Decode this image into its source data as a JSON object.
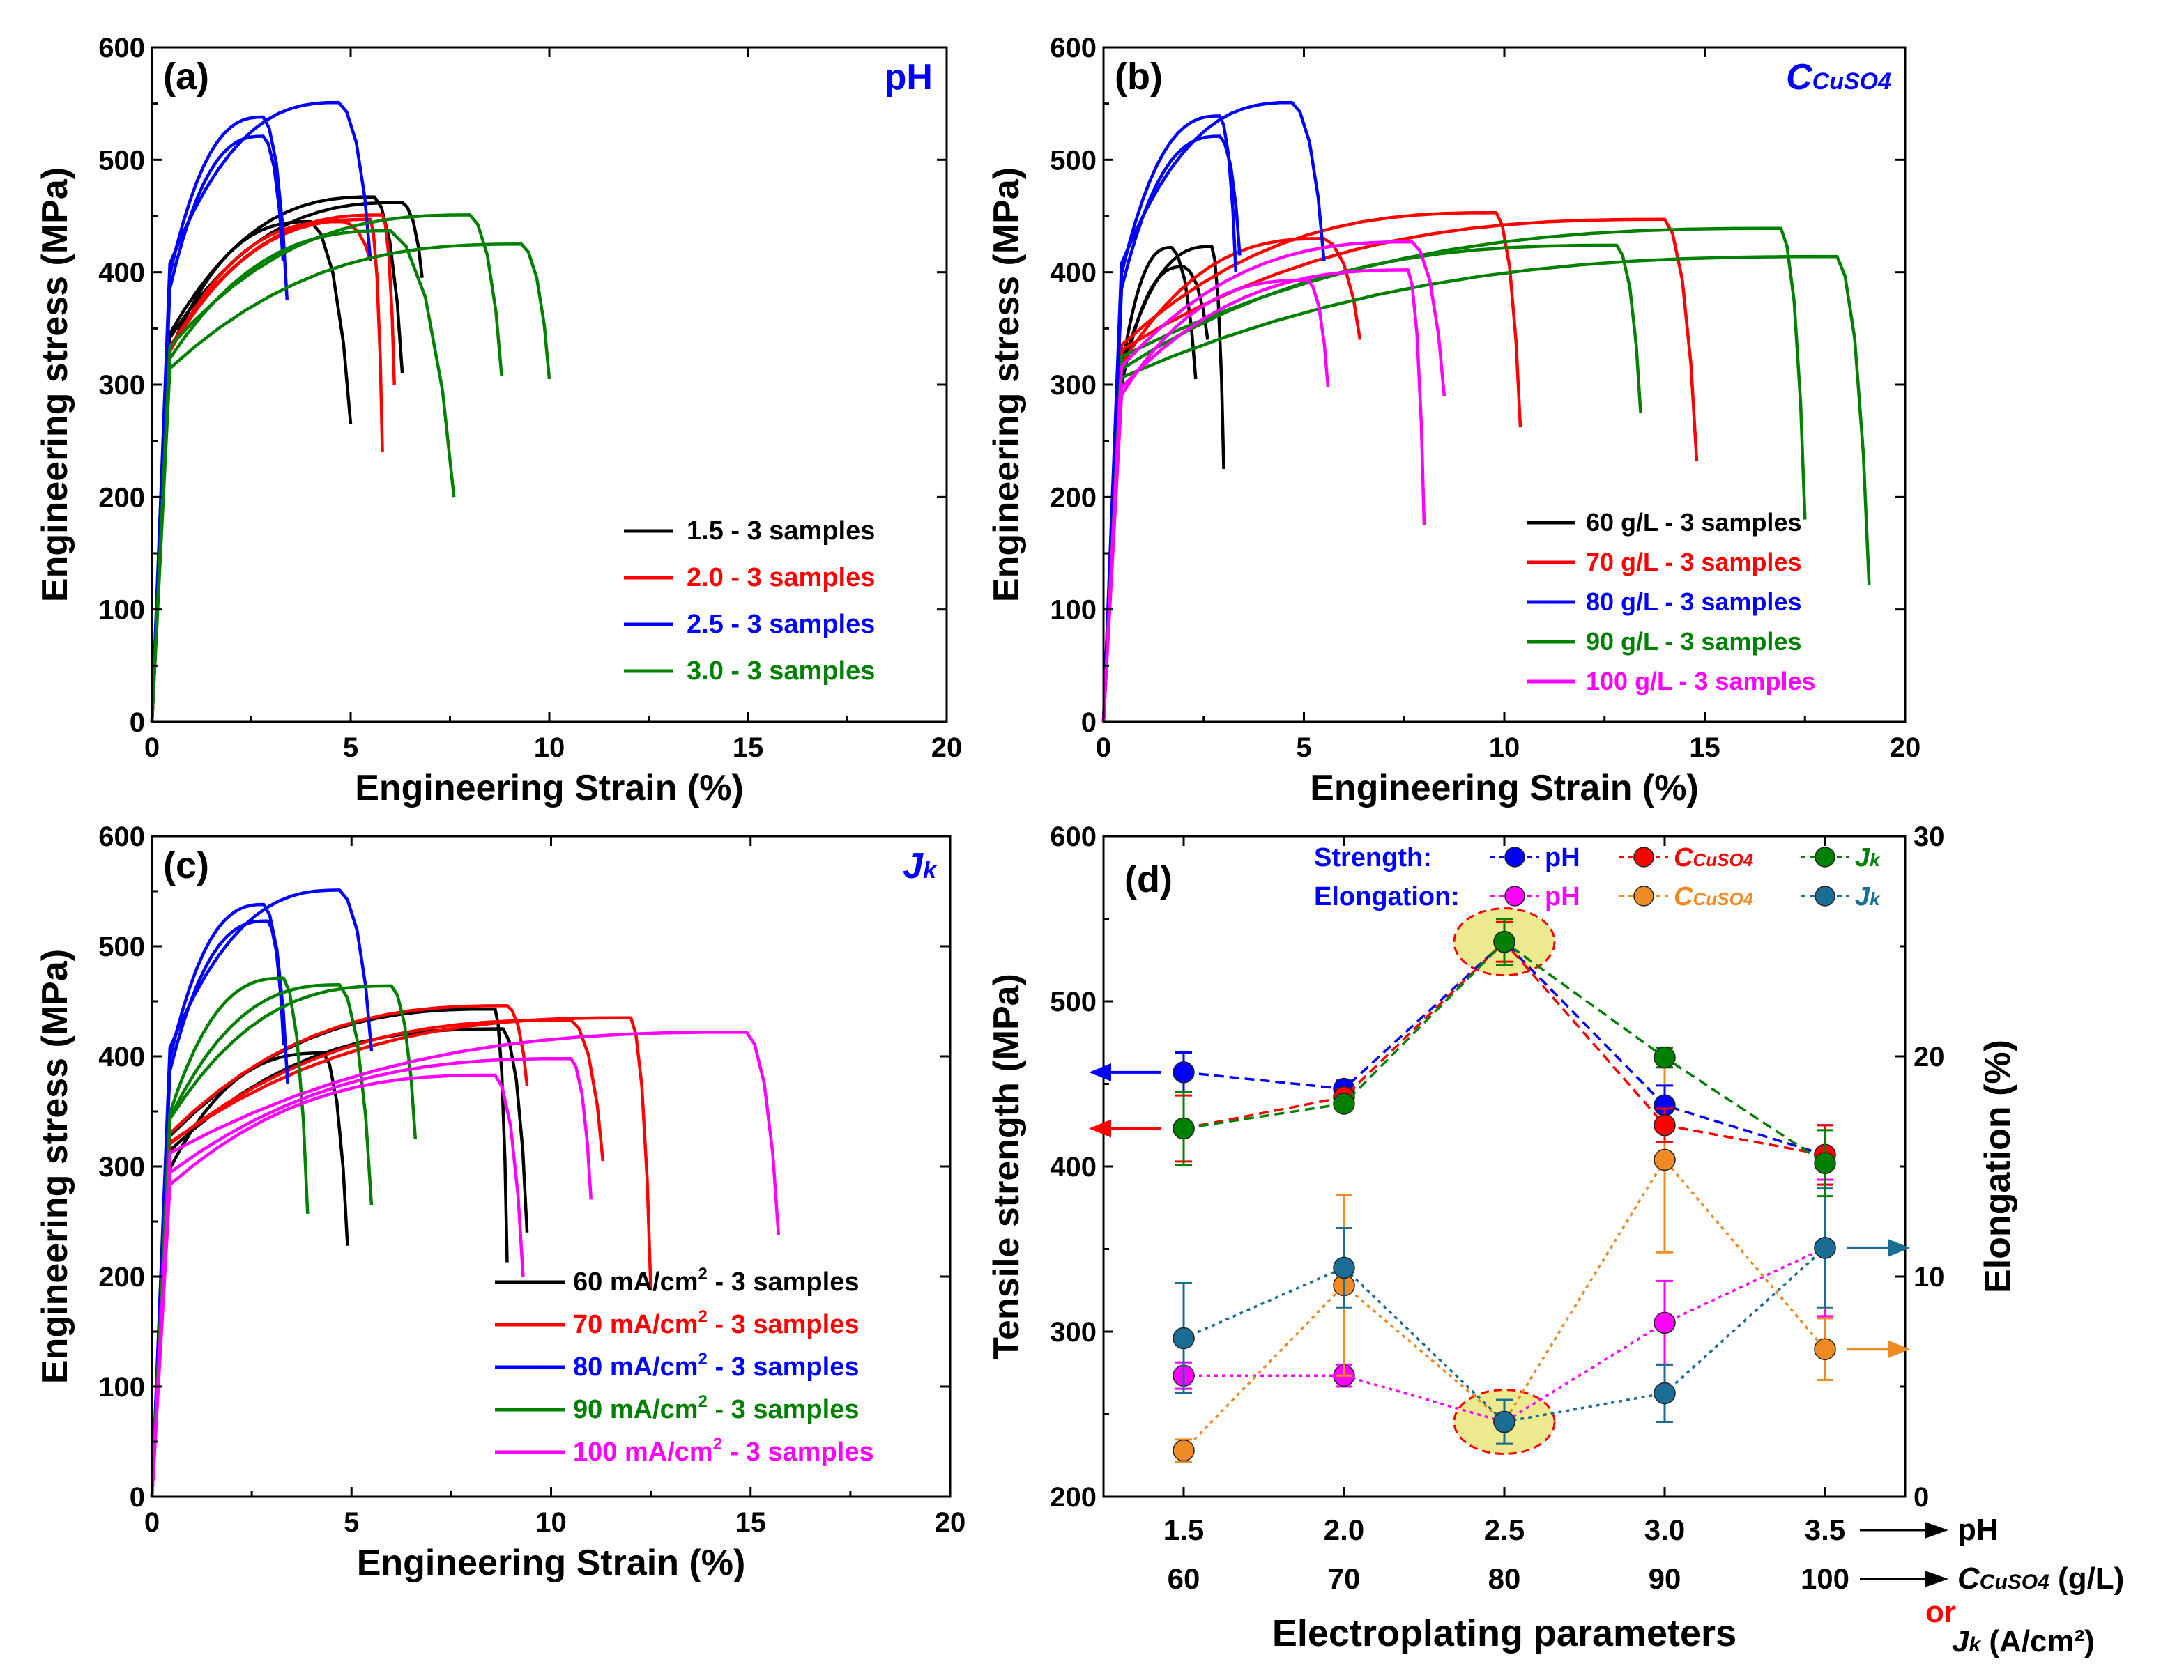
{
  "chart_data": [
    {
      "id": "a",
      "type": "line",
      "panel_label": "(a)",
      "corner_label": "pH",
      "xlabel": "Engineering Strain (%)",
      "ylabel": "Engineering stress (MPa)",
      "xlim": [
        0,
        20
      ],
      "ylim": [
        0,
        600
      ],
      "xticks": [
        0,
        5,
        10,
        15,
        20
      ],
      "yticks": [
        0,
        100,
        200,
        300,
        400,
        500,
        600
      ],
      "legend_position": "lower-right",
      "series": [
        {
          "name": "1.5 - 3 samples",
          "color": "#000000",
          "samples": [
            {
              "uts": 445,
              "e_uts": 4.0,
              "e_end": 5.0,
              "s_end": 265
            },
            {
              "uts": 467,
              "e_uts": 5.6,
              "e_end": 6.3,
              "s_end": 310
            },
            {
              "uts": 462,
              "e_uts": 6.3,
              "e_end": 6.8,
              "s_end": 395
            }
          ]
        },
        {
          "name": "2.0 - 3 samples",
          "color": "#ff0000",
          "samples": [
            {
              "uts": 447,
              "e_uts": 5.5,
              "e_end": 5.8,
              "s_end": 240
            },
            {
              "uts": 451,
              "e_uts": 5.8,
              "e_end": 6.1,
              "s_end": 300
            },
            {
              "uts": 445,
              "e_uts": 4.8,
              "e_end": 5.5,
              "s_end": 410
            }
          ]
        },
        {
          "name": "2.5 - 3 samples",
          "color": "#0000ff",
          "samples": [
            {
              "uts": 538,
              "e_uts": 2.8,
              "e_end": 3.4,
              "s_end": 375
            },
            {
              "uts": 521,
              "e_uts": 2.8,
              "e_end": 3.3,
              "s_end": 410
            },
            {
              "uts": 551,
              "e_uts": 4.7,
              "e_end": 5.5,
              "s_end": 410
            }
          ]
        },
        {
          "name": "3.0 - 3 samples",
          "color": "#008000",
          "samples": [
            {
              "uts": 437,
              "e_uts": 6.0,
              "e_end": 7.6,
              "s_end": 200
            },
            {
              "uts": 451,
              "e_uts": 8.0,
              "e_end": 8.8,
              "s_end": 308
            },
            {
              "uts": 425,
              "e_uts": 9.3,
              "e_end": 10.0,
              "s_end": 305
            }
          ]
        }
      ]
    },
    {
      "id": "b",
      "type": "line",
      "panel_label": "(b)",
      "corner_label": "CCuSO4",
      "xlabel": "Engineering Strain (%)",
      "ylabel": "Engineering stress (MPa)",
      "xlim": [
        0,
        20
      ],
      "ylim": [
        0,
        600
      ],
      "xticks": [
        0,
        5,
        10,
        15,
        20
      ],
      "yticks": [
        0,
        100,
        200,
        300,
        400,
        500,
        600
      ],
      "legend_position": "lower-right",
      "series": [
        {
          "name": "60 g/L - 3 samples",
          "color": "#000000",
          "samples": [
            {
              "uts": 422,
              "e_uts": 1.7,
              "e_end": 2.3,
              "s_end": 305
            },
            {
              "uts": 405,
              "e_uts": 2.0,
              "e_end": 2.6,
              "s_end": 340
            },
            {
              "uts": 423,
              "e_uts": 2.7,
              "e_end": 3.0,
              "s_end": 225
            }
          ]
        },
        {
          "name": "70 g/L - 3 samples",
          "color": "#ff0000",
          "samples": [
            {
              "uts": 430,
              "e_uts": 5.5,
              "e_end": 6.4,
              "s_end": 340
            },
            {
              "uts": 453,
              "e_uts": 9.8,
              "e_end": 10.4,
              "s_end": 262
            },
            {
              "uts": 447,
              "e_uts": 14.0,
              "e_end": 14.8,
              "s_end": 232
            }
          ]
        },
        {
          "name": "80 g/L - 3 samples",
          "color": "#0000ff",
          "samples": [
            {
              "uts": 539,
              "e_uts": 2.9,
              "e_end": 3.3,
              "s_end": 400
            },
            {
              "uts": 521,
              "e_uts": 2.9,
              "e_end": 3.4,
              "s_end": 415
            },
            {
              "uts": 551,
              "e_uts": 4.7,
              "e_end": 5.5,
              "s_end": 410
            }
          ]
        },
        {
          "name": "90 g/L - 3 samples",
          "color": "#008000",
          "samples": [
            {
              "uts": 424,
              "e_uts": 12.8,
              "e_end": 13.4,
              "s_end": 275
            },
            {
              "uts": 439,
              "e_uts": 16.9,
              "e_end": 17.5,
              "s_end": 180
            },
            {
              "uts": 414,
              "e_uts": 18.3,
              "e_end": 19.1,
              "s_end": 122
            }
          ]
        },
        {
          "name": "100 g/L - 3 samples",
          "color": "#ff00ff",
          "samples": [
            {
              "uts": 393,
              "e_uts": 5.1,
              "e_end": 5.6,
              "s_end": 298
            },
            {
              "uts": 402,
              "e_uts": 7.6,
              "e_end": 8.0,
              "s_end": 175
            },
            {
              "uts": 427,
              "e_uts": 7.7,
              "e_end": 8.5,
              "s_end": 290
            }
          ]
        }
      ]
    },
    {
      "id": "c",
      "type": "line",
      "panel_label": "(c)",
      "corner_label": "Jk",
      "xlabel": "Engineering Strain (%)",
      "ylabel": "Engineering stress (MPa)",
      "xlim": [
        0,
        20
      ],
      "ylim": [
        0,
        600
      ],
      "xticks": [
        0,
        5,
        10,
        15,
        20
      ],
      "yticks": [
        0,
        100,
        200,
        300,
        400,
        500,
        600
      ],
      "legend_position": "lower-right",
      "series": [
        {
          "name": "60 mA/cm² - 3 samples",
          "color": "#000000",
          "samples": [
            {
              "uts": 403,
              "e_uts": 4.3,
              "e_end": 4.9,
              "s_end": 228
            },
            {
              "uts": 443,
              "e_uts": 8.6,
              "e_end": 8.9,
              "s_end": 213
            },
            {
              "uts": 425,
              "e_uts": 8.8,
              "e_end": 9.4,
              "s_end": 240
            }
          ]
        },
        {
          "name": "70 mA/cm² - 3 samples",
          "color": "#ff0000",
          "samples": [
            {
              "uts": 446,
              "e_uts": 8.9,
              "e_end": 9.4,
              "s_end": 373
            },
            {
              "uts": 433,
              "e_uts": 10.5,
              "e_end": 11.3,
              "s_end": 305
            },
            {
              "uts": 435,
              "e_uts": 12.0,
              "e_end": 12.5,
              "s_end": 188
            }
          ]
        },
        {
          "name": "80 mA/cm² - 3 samples",
          "color": "#0000ff",
          "samples": [
            {
              "uts": 538,
              "e_uts": 2.8,
              "e_end": 3.4,
              "s_end": 375
            },
            {
              "uts": 523,
              "e_uts": 2.9,
              "e_end": 3.3,
              "s_end": 410
            },
            {
              "uts": 551,
              "e_uts": 4.7,
              "e_end": 5.5,
              "s_end": 405
            }
          ]
        },
        {
          "name": "90 mA/cm² - 3 samples",
          "color": "#008000",
          "samples": [
            {
              "uts": 471,
              "e_uts": 3.3,
              "e_end": 3.9,
              "s_end": 257
            },
            {
              "uts": 465,
              "e_uts": 4.7,
              "e_end": 5.5,
              "s_end": 265
            },
            {
              "uts": 464,
              "e_uts": 6.0,
              "e_end": 6.6,
              "s_end": 325
            }
          ]
        },
        {
          "name": "100 mA/cm² - 3 samples",
          "color": "#ff00ff",
          "samples": [
            {
              "uts": 383,
              "e_uts": 8.6,
              "e_end": 9.3,
              "s_end": 200
            },
            {
              "uts": 398,
              "e_uts": 10.5,
              "e_end": 11.0,
              "s_end": 270
            },
            {
              "uts": 422,
              "e_uts": 14.9,
              "e_end": 15.7,
              "s_end": 238
            }
          ]
        }
      ]
    },
    {
      "id": "d",
      "type": "line",
      "panel_label": "(d)",
      "xlabel": "Electroplating parameters",
      "ylabel": "Tensile strength (MPa)",
      "ylabel_right": "Elongation (%)",
      "x": [
        1,
        2,
        3,
        4,
        5
      ],
      "xlim": [
        0.5,
        5.5
      ],
      "ylim": [
        200,
        600
      ],
      "ylim_right": [
        0,
        30
      ],
      "yticks": [
        200,
        300,
        400,
        500,
        600
      ],
      "yticks_right": [
        0,
        10,
        20,
        30
      ],
      "tick_labels_row1": [
        "1.5",
        "2.0",
        "2.5",
        "3.0",
        "3.5"
      ],
      "tick_labels_row2": [
        "60",
        "70",
        "80",
        "90",
        "100"
      ],
      "axis_caption_row1": "pH",
      "axis_caption_row2_main": "C",
      "axis_caption_row2_sub": "CuSO4",
      "axis_caption_row2_unit": " (g/L)",
      "axis_caption_or": "or",
      "axis_caption_row3_main": "J",
      "axis_caption_row3_sub": "k",
      "axis_caption_row3_unit": " (A/cm²)",
      "legend_strength_label": "Strength:",
      "legend_elongation_label": "Elongation:",
      "strength_series": [
        {
          "name": "pH",
          "label_main": "",
          "label_sub": "",
          "label_plain": "pH",
          "color": "#0000ff",
          "values": [
            457,
            447,
            536,
            437,
            407
          ],
          "errors": [
            12,
            5,
            14,
            12,
            18
          ]
        },
        {
          "name": "CCuSO4",
          "label_main": "C",
          "label_sub": "CuSO4",
          "label_plain": "",
          "color": "#ff0000",
          "values": [
            423,
            442,
            536,
            425,
            407
          ],
          "errors": [
            20,
            5,
            12,
            10,
            18
          ]
        },
        {
          "name": "Jk",
          "label_main": "J",
          "label_sub": "k",
          "label_plain": "",
          "color": "#008000",
          "values": [
            423,
            438,
            536,
            466,
            402
          ],
          "errors": [
            22,
            4,
            14,
            6,
            20
          ]
        }
      ],
      "elongation_series": [
        {
          "name": "pH",
          "label_main": "",
          "label_sub": "",
          "label_plain": "pH",
          "color": "#ff00ff",
          "values": [
            5.5,
            5.5,
            3.4,
            7.9,
            11.3
          ],
          "errors": [
            0.6,
            0.5,
            1.0,
            1.9,
            3.1
          ]
        },
        {
          "name": "CCuSO4",
          "label_main": "C",
          "label_sub": "CuSO4",
          "label_plain": "",
          "color": "#f08a24",
          "values": [
            2.1,
            9.6,
            3.4,
            15.3,
            6.7
          ],
          "errors": [
            0.5,
            4.1,
            1.0,
            4.2,
            1.4
          ]
        },
        {
          "name": "Jk",
          "label_main": "J",
          "label_sub": "k",
          "label_plain": "",
          "color": "#1a6e96",
          "values": [
            7.2,
            10.4,
            3.4,
            4.7,
            11.3
          ],
          "errors": [
            2.5,
            1.8,
            1.0,
            1.3,
            2.7
          ]
        }
      ],
      "highlight_color": "#ede98f",
      "highlight_border": "#ff0000"
    }
  ]
}
